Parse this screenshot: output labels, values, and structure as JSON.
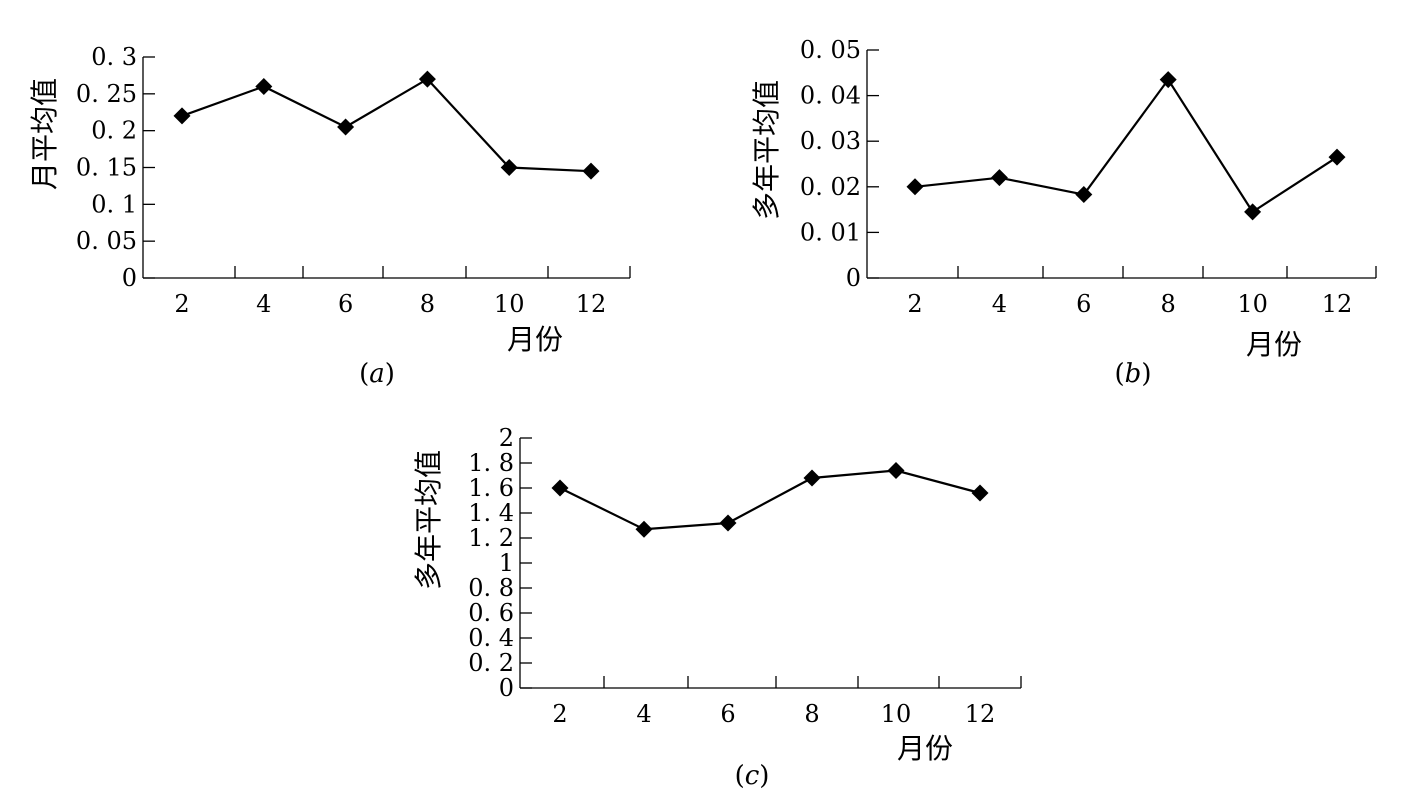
{
  "chart_data": [
    {
      "type": "line",
      "caption": "a",
      "xlabel": "月份",
      "ylabel": "月平均值",
      "x": [
        2,
        4,
        6,
        8,
        10,
        12
      ],
      "xticks": [
        "2",
        "4",
        "6",
        "8",
        "10",
        "12"
      ],
      "yticks": [
        "0",
        "0. 05",
        "0. 1",
        "0. 15",
        "0. 2",
        "0. 25",
        "0. 3"
      ],
      "ylim": [
        0,
        0.3
      ],
      "series": [
        {
          "values": [
            0.22,
            0.26,
            0.205,
            0.27,
            0.15,
            0.145
          ]
        }
      ],
      "marker": "diamond",
      "grid": false
    },
    {
      "type": "line",
      "caption": "b",
      "xlabel": "月份",
      "ylabel": "多年平均值",
      "x": [
        2,
        4,
        6,
        8,
        10,
        12
      ],
      "xticks": [
        "2",
        "4",
        "6",
        "8",
        "10",
        "12"
      ],
      "yticks": [
        "0",
        "0. 01",
        "0. 02",
        "0. 03",
        "0. 04",
        "0. 05"
      ],
      "ylim": [
        0,
        0.05
      ],
      "series": [
        {
          "values": [
            0.02,
            0.022,
            0.0183,
            0.0435,
            0.0145,
            0.0265
          ]
        }
      ],
      "marker": "diamond",
      "grid": false
    },
    {
      "type": "line",
      "caption": "c",
      "xlabel": "月份",
      "ylabel": "多年平均值",
      "x": [
        2,
        4,
        6,
        8,
        10,
        12
      ],
      "xticks": [
        "2",
        "4",
        "6",
        "8",
        "10",
        "12"
      ],
      "yticks": [
        "0",
        "0. 2",
        "0. 4",
        "0. 6",
        "0. 8",
        "1",
        "1. 2",
        "1. 4",
        "1. 6",
        "1. 8",
        "2"
      ],
      "ylim": [
        0,
        2
      ],
      "series": [
        {
          "values": [
            1.6,
            1.27,
            1.32,
            1.68,
            1.74,
            1.56
          ]
        }
      ],
      "marker": "diamond",
      "grid": false
    }
  ]
}
